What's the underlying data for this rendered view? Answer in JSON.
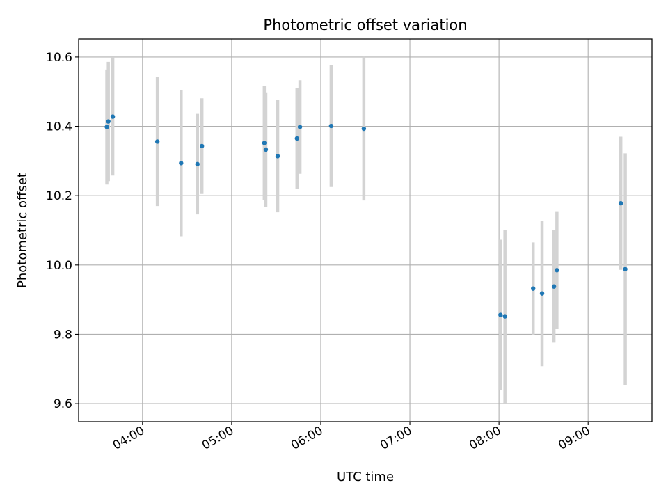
{
  "chart_data": {
    "type": "scatter",
    "title": "Photometric offset variation",
    "xlabel": "UTC time",
    "ylabel": "Photometric offset",
    "xlim": [
      "03:17",
      "09:43"
    ],
    "ylim": [
      9.548,
      10.652
    ],
    "grid": true,
    "x_ticks": [
      "04:00",
      "05:00",
      "06:00",
      "07:00",
      "08:00",
      "09:00"
    ],
    "y_ticks": [
      9.6,
      9.8,
      10.0,
      10.2,
      10.4,
      10.6
    ],
    "y_tick_labels": [
      "9.6",
      "9.8",
      "10.0",
      "10.2",
      "10.4",
      "10.6"
    ],
    "colors": {
      "points": "#1f77b4",
      "error_bars": "#d3d3d3",
      "grid": "#b0b0b0"
    },
    "points": [
      {
        "x": "03:36",
        "y": 10.398,
        "err": 0.166
      },
      {
        "x": "03:37",
        "y": 10.414,
        "err": 0.172
      },
      {
        "x": "03:40",
        "y": 10.428,
        "err": 0.17
      },
      {
        "x": "04:10",
        "y": 10.356,
        "err": 0.186
      },
      {
        "x": "04:26",
        "y": 10.294,
        "err": 0.211
      },
      {
        "x": "04:37",
        "y": 10.291,
        "err": 0.145
      },
      {
        "x": "04:40",
        "y": 10.343,
        "err": 0.138
      },
      {
        "x": "05:22",
        "y": 10.352,
        "err": 0.165
      },
      {
        "x": "05:23",
        "y": 10.333,
        "err": 0.165
      },
      {
        "x": "05:31",
        "y": 10.314,
        "err": 0.162
      },
      {
        "x": "05:44",
        "y": 10.365,
        "err": 0.146
      },
      {
        "x": "05:46",
        "y": 10.398,
        "err": 0.135
      },
      {
        "x": "06:07",
        "y": 10.401,
        "err": 0.176
      },
      {
        "x": "06:29",
        "y": 10.393,
        "err": 0.207
      },
      {
        "x": "08:01",
        "y": 9.856,
        "err": 0.217
      },
      {
        "x": "08:04",
        "y": 9.852,
        "err": 0.25
      },
      {
        "x": "08:23",
        "y": 9.932,
        "err": 0.133
      },
      {
        "x": "08:29",
        "y": 9.918,
        "err": 0.21
      },
      {
        "x": "08:37",
        "y": 9.938,
        "err": 0.162
      },
      {
        "x": "08:39",
        "y": 9.985,
        "err": 0.17
      },
      {
        "x": "09:22",
        "y": 10.178,
        "err": 0.192
      },
      {
        "x": "09:25",
        "y": 9.988,
        "err": 0.334
      }
    ]
  }
}
